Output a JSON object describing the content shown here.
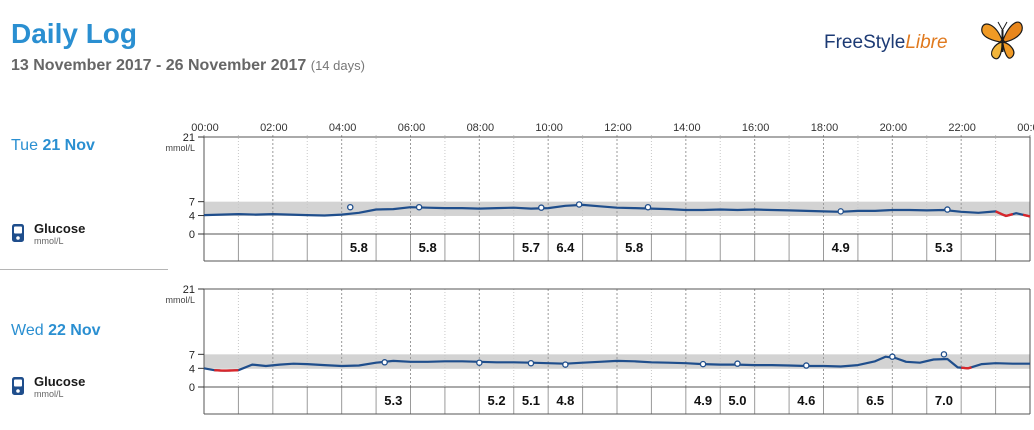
{
  "header": {
    "title": "Daily Log",
    "date_range": "13 November 2017 - 26 November 2017",
    "days": "(14 days)",
    "brand_name": "FreeStyle",
    "brand_suffix": "Libre"
  },
  "colors": {
    "title": "#2a8fd1",
    "glucose_line": "#1f4e8c",
    "low_segment": "#d9262a",
    "target_band": "#d3d3d3"
  },
  "time_axis": [
    "00:00",
    "02:00",
    "04:00",
    "06:00",
    "08:00",
    "10:00",
    "12:00",
    "14:00",
    "16:00",
    "18:00",
    "20:00",
    "22:00",
    "00:00"
  ],
  "days": [
    {
      "weekday": "Tue",
      "date": "21 Nov",
      "glucose_label": "Glucose",
      "glucose_unit": "mmol/L",
      "y_unit": "mmol/L",
      "y_ticks": [
        "21",
        "7",
        "4",
        "0"
      ]
    },
    {
      "weekday": "Wed",
      "date": "22 Nov",
      "glucose_label": "Glucose",
      "glucose_unit": "mmol/L",
      "y_unit": "mmol/L",
      "y_ticks": [
        "21",
        "7",
        "4",
        "0"
      ]
    }
  ],
  "chart_data": [
    {
      "type": "line",
      "xlabel": "",
      "ylabel": "mmol/L",
      "xlim": [
        0,
        24
      ],
      "ylim": [
        0,
        21
      ],
      "target_range": [
        3.9,
        7.0
      ],
      "series": [
        {
          "x": [
            0,
            0.5,
            1,
            1.5,
            2,
            2.5,
            3,
            3.5,
            4,
            4.5,
            5,
            5.5,
            6,
            6.5,
            7,
            7.5,
            8,
            8.5,
            9,
            9.5,
            10,
            10.5,
            11,
            11.5,
            12,
            12.5,
            13,
            13.5,
            14,
            14.5,
            15,
            15.5,
            16,
            16.5,
            17,
            17.5,
            18,
            18.5,
            19,
            19.5,
            20,
            20.5,
            21,
            21.5,
            22,
            22.5,
            23,
            23.3,
            23.6,
            24
          ],
          "y": [
            4.1,
            4.2,
            4.3,
            4.2,
            4.3,
            4.2,
            4.1,
            4.0,
            4.2,
            4.6,
            5.3,
            5.4,
            5.8,
            5.7,
            5.6,
            5.6,
            5.5,
            5.6,
            5.7,
            5.5,
            5.6,
            6.1,
            6.3,
            6.0,
            5.7,
            5.6,
            5.5,
            5.4,
            5.2,
            5.2,
            5.3,
            5.2,
            5.3,
            5.2,
            5.1,
            5.0,
            4.9,
            4.8,
            5.0,
            5.0,
            5.2,
            5.2,
            5.1,
            5.2,
            4.8,
            4.6,
            4.9,
            3.9,
            4.5,
            3.8
          ]
        }
      ],
      "low_segments": [
        [
          23.0,
          23.5
        ],
        [
          23.8,
          24
        ]
      ],
      "scans": [
        {
          "time": 4.25,
          "value": 5.8
        },
        {
          "time": 6.25,
          "value": 5.8
        },
        {
          "time": 9.8,
          "value": 5.7
        },
        {
          "time": 10.9,
          "value": 6.4
        },
        {
          "time": 12.9,
          "value": 5.8
        },
        {
          "time": 18.5,
          "value": 4.9
        },
        {
          "time": 21.6,
          "value": 5.3
        }
      ],
      "labels": [
        {
          "time": 4.5,
          "value": "5.8"
        },
        {
          "time": 6.5,
          "value": "5.8"
        },
        {
          "time": 9.5,
          "value": "5.7"
        },
        {
          "time": 10.5,
          "value": "6.4"
        },
        {
          "time": 12.5,
          "value": "5.8"
        },
        {
          "time": 18.5,
          "value": "4.9"
        },
        {
          "time": 21.5,
          "value": "5.3"
        }
      ]
    },
    {
      "type": "line",
      "xlabel": "",
      "ylabel": "mmol/L",
      "xlim": [
        0,
        24
      ],
      "ylim": [
        0,
        21
      ],
      "target_range": [
        3.9,
        7.0
      ],
      "series": [
        {
          "x": [
            0,
            0.3,
            0.6,
            1,
            1.4,
            1.8,
            2.2,
            2.6,
            3,
            3.5,
            4,
            4.5,
            5,
            5.5,
            6,
            6.5,
            7,
            7.5,
            8,
            8.5,
            9,
            9.5,
            10,
            10.5,
            11,
            11.5,
            12,
            12.5,
            13,
            13.5,
            14,
            14.5,
            15,
            15.5,
            16,
            16.5,
            17,
            17.5,
            18,
            18.5,
            19,
            19.5,
            19.8,
            20.1,
            20.4,
            20.8,
            21.2,
            21.6,
            21.9,
            22.2,
            22.6,
            23,
            23.5,
            24
          ],
          "y": [
            4.0,
            3.6,
            3.5,
            3.6,
            4.8,
            4.5,
            4.8,
            5.0,
            4.9,
            4.7,
            4.5,
            4.6,
            5.2,
            5.6,
            5.4,
            5.4,
            5.5,
            5.5,
            5.4,
            5.3,
            5.3,
            5.2,
            5.1,
            5.0,
            5.2,
            5.4,
            5.6,
            5.5,
            5.3,
            5.2,
            5.1,
            4.9,
            4.8,
            4.8,
            4.7,
            4.7,
            4.6,
            4.5,
            4.5,
            4.4,
            4.7,
            5.5,
            6.5,
            6.2,
            5.4,
            5.2,
            5.9,
            6.0,
            4.2,
            4.0,
            4.9,
            5.1,
            5.0,
            5.0
          ]
        }
      ],
      "low_segments": [
        [
          0.3,
          1.0
        ],
        [
          22.0,
          22.3
        ]
      ],
      "scans": [
        {
          "time": 5.25,
          "value": 5.3
        },
        {
          "time": 8.0,
          "value": 5.2
        },
        {
          "time": 9.5,
          "value": 5.1
        },
        {
          "time": 10.5,
          "value": 4.8
        },
        {
          "time": 14.5,
          "value": 4.9
        },
        {
          "time": 15.5,
          "value": 5.0
        },
        {
          "time": 17.5,
          "value": 4.6
        },
        {
          "time": 20.0,
          "value": 6.5
        },
        {
          "time": 21.5,
          "value": 7.0
        }
      ],
      "labels": [
        {
          "time": 5.5,
          "value": "5.3"
        },
        {
          "time": 8.5,
          "value": "5.2"
        },
        {
          "time": 9.5,
          "value": "5.1"
        },
        {
          "time": 10.5,
          "value": "4.8"
        },
        {
          "time": 14.5,
          "value": "4.9"
        },
        {
          "time": 15.5,
          "value": "5.0"
        },
        {
          "time": 17.5,
          "value": "4.6"
        },
        {
          "time": 19.5,
          "value": "6.5"
        },
        {
          "time": 21.5,
          "value": "7.0"
        }
      ]
    }
  ]
}
